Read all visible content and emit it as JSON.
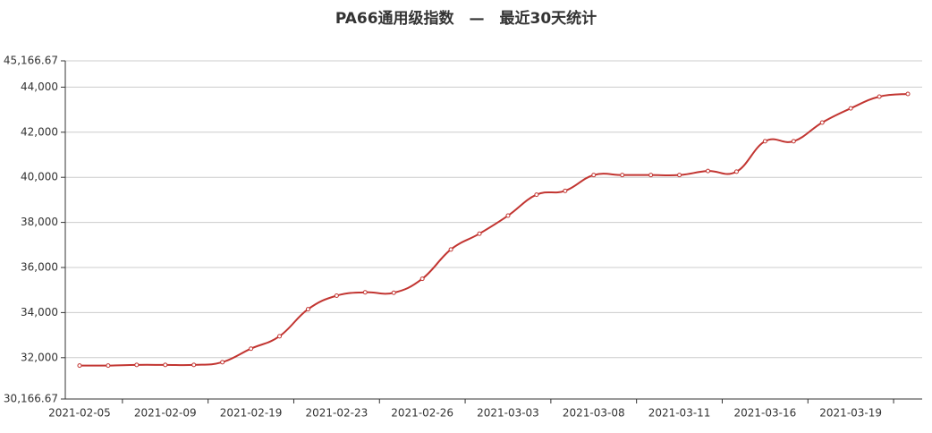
{
  "chart_data": {
    "type": "line",
    "title": "PA66通用级指数　—　最近30天统计",
    "categories": [
      "2021-02-05",
      null,
      null,
      "2021-02-09",
      null,
      null,
      "2021-02-19",
      null,
      null,
      "2021-02-23",
      null,
      null,
      "2021-02-26",
      null,
      null,
      "2021-03-03",
      null,
      null,
      "2021-03-08",
      null,
      null,
      "2021-03-11",
      null,
      null,
      "2021-03-16",
      null,
      null,
      "2021-03-19",
      null,
      null
    ],
    "series": [
      {
        "color": "#c23531",
        "values": [
          31650,
          31650,
          31680,
          31680,
          31680,
          31800,
          32400,
          32950,
          34150,
          34750,
          34900,
          34880,
          35500,
          36800,
          37500,
          38300,
          39230,
          39400,
          40100,
          40100,
          40100,
          40100,
          40280,
          40250,
          41600,
          41600,
          42430,
          43060,
          43580,
          43700
        ]
      }
    ],
    "ylim": [
      30166.67,
      45166.67
    ],
    "yticks": [
      {
        "value": 30166.67,
        "label": "30,166.67"
      },
      {
        "value": 32000,
        "label": "32,000"
      },
      {
        "value": 34000,
        "label": "34,000"
      },
      {
        "value": 36000,
        "label": "36,000"
      },
      {
        "value": 38000,
        "label": "38,000"
      },
      {
        "value": 40000,
        "label": "40,000"
      },
      {
        "value": 42000,
        "label": "42,000"
      },
      {
        "value": 44000,
        "label": "44,000"
      },
      {
        "value": 45166.67,
        "label": "45,166.67"
      }
    ],
    "grid": true
  }
}
